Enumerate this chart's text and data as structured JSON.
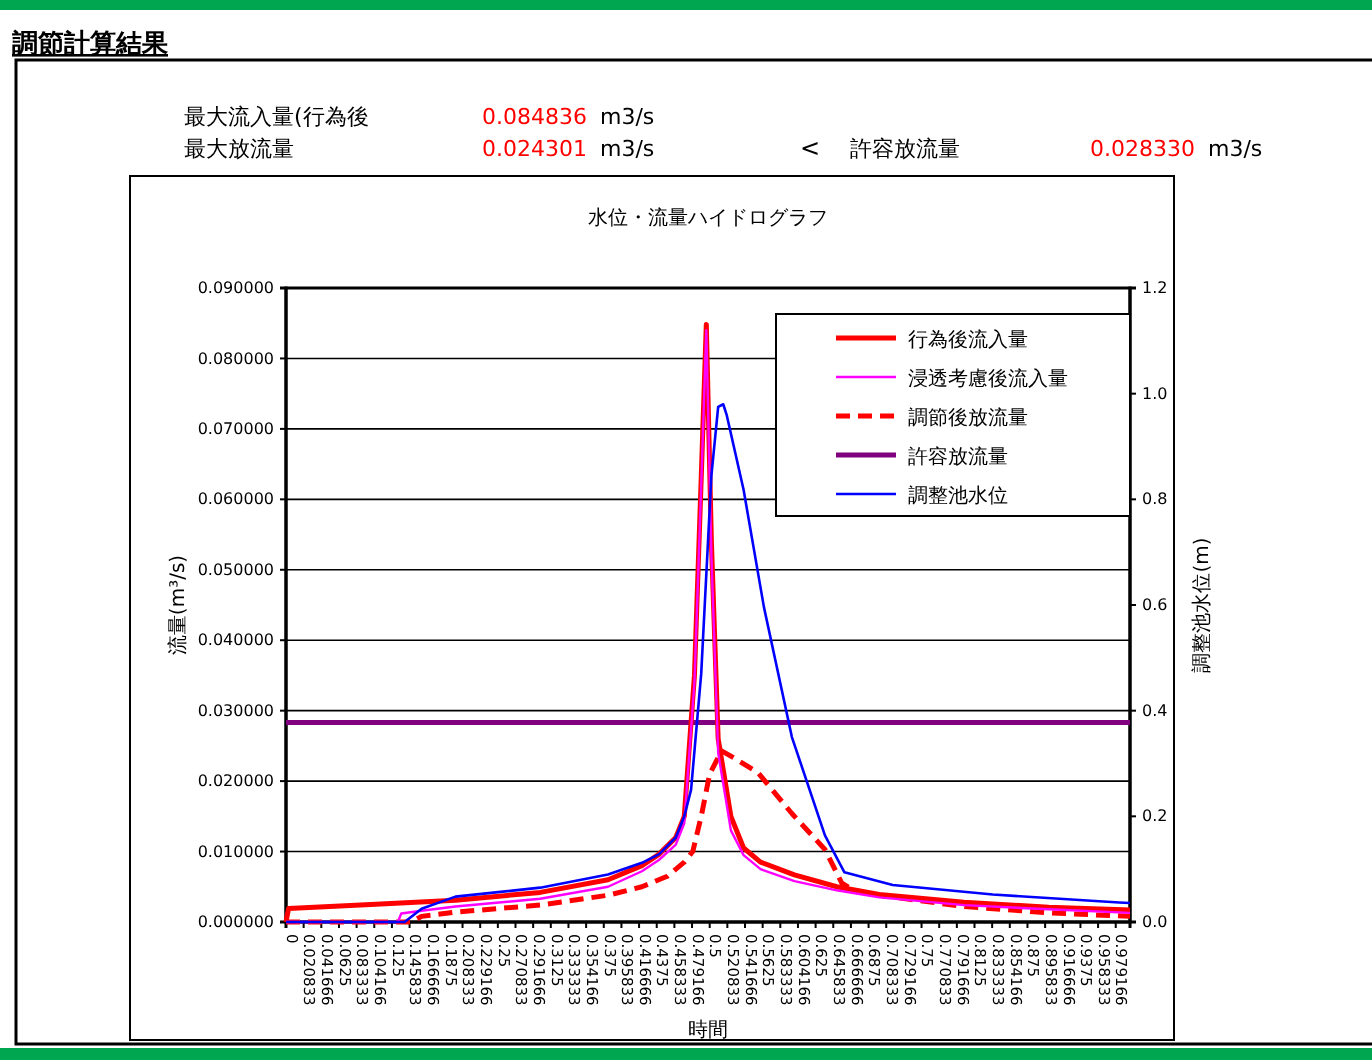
{
  "chart_data": {
    "type": "line",
    "title": "水位・流量ハイドログラフ",
    "annotations": [
      "調節計算結果",
      "最大流入量(行為後",
      "0.084836",
      "m3/s",
      "最大放流量",
      "0.024301",
      "m3/s",
      "<",
      "許容放流量",
      "0.028330",
      "m3/s"
    ],
    "xlabel": "時間",
    "ylabel": "流量(m³/s)",
    "y2label": "調整池水位(m)",
    "xlim": [
      0,
      0.996
    ],
    "xticks": [
      0,
      0.020833,
      0.041666,
      0.0625,
      0.083333,
      0.104166,
      0.125,
      0.145833,
      0.166666,
      0.1875,
      0.208333,
      0.229166,
      0.25,
      0.270833,
      0.291666,
      0.3125,
      0.333333,
      0.354166,
      0.375,
      0.395833,
      0.416666,
      0.4375,
      0.458333,
      0.479166,
      0.5,
      0.520833,
      0.541666,
      0.5625,
      0.583333,
      0.604166,
      0.625,
      0.645833,
      0.666666,
      0.6875,
      0.708333,
      0.729166,
      0.75,
      0.770833,
      0.791666,
      0.8125,
      0.833333,
      0.854166,
      0.875,
      0.895833,
      0.916666,
      0.9375,
      0.958333,
      0.979166
    ],
    "ylim": [
      0,
      0.09
    ],
    "yticks": [
      {
        "value": 0,
        "label": "0.000000"
      },
      {
        "value": 0.01,
        "label": "0.010000"
      },
      {
        "value": 0.02,
        "label": "0.020000"
      },
      {
        "value": 0.03,
        "label": "0.030000"
      },
      {
        "value": 0.04,
        "label": "0.040000"
      },
      {
        "value": 0.05,
        "label": "0.050000"
      },
      {
        "value": 0.06,
        "label": "0.060000"
      },
      {
        "value": 0.07,
        "label": "0.070000"
      },
      {
        "value": 0.08,
        "label": "0.080000"
      },
      {
        "value": 0.09,
        "label": "0.090000"
      }
    ],
    "y2lim": [
      0,
      1.2
    ],
    "y2ticks": [
      {
        "value": 0,
        "label": "0.0"
      },
      {
        "value": 0.2,
        "label": "0.2"
      },
      {
        "value": 0.4,
        "label": "0.4"
      },
      {
        "value": 0.6,
        "label": "0.6"
      },
      {
        "value": 0.8,
        "label": "0.8"
      },
      {
        "value": 1,
        "label": "1.0"
      },
      {
        "value": 1.2,
        "label": "1.2"
      }
    ],
    "grid": "y",
    "legend": "top right",
    "marker": "none",
    "series": [
      {
        "name": "行為後流入量",
        "color": "#ff0000",
        "line_style": "solid",
        "x": [
          0,
          0.003,
          0.1,
          0.2,
          0.3,
          0.38,
          0.42,
          0.44,
          0.46,
          0.47,
          0.482,
          0.49,
          0.496,
          0.502,
          0.51,
          0.525,
          0.54,
          0.56,
          0.6,
          0.65,
          0.7,
          0.8,
          0.9,
          0.996
        ],
        "values": [
          0,
          0.0019,
          0.0025,
          0.0031,
          0.0042,
          0.006,
          0.008,
          0.0096,
          0.012,
          0.015,
          0.035,
          0.063,
          0.084836,
          0.054,
          0.026,
          0.015,
          0.0105,
          0.0085,
          0.0067,
          0.005,
          0.0039,
          0.0028,
          0.0021,
          0.0017
        ]
      },
      {
        "name": "浸透考慮後流入量",
        "color": "#ff00ff",
        "line_style": "solid",
        "x": [
          0,
          0.132,
          0.136,
          0.16,
          0.2,
          0.3,
          0.38,
          0.42,
          0.44,
          0.46,
          0.47,
          0.482,
          0.49,
          0.496,
          0.502,
          0.51,
          0.525,
          0.54,
          0.56,
          0.6,
          0.65,
          0.7,
          0.8,
          0.9,
          0.996
        ],
        "values": [
          0,
          0,
          0.0012,
          0.0016,
          0.0022,
          0.0033,
          0.005,
          0.0072,
          0.0088,
          0.011,
          0.014,
          0.034,
          0.062,
          0.084,
          0.052,
          0.024,
          0.013,
          0.0095,
          0.0075,
          0.0058,
          0.0045,
          0.0035,
          0.0024,
          0.0018,
          0.0013
        ]
      },
      {
        "name": "調節後放流量",
        "color": "#ff0000",
        "line_style": "dashed",
        "x": [
          0,
          0.148,
          0.16,
          0.2,
          0.3,
          0.38,
          0.42,
          0.45,
          0.47,
          0.48,
          0.49,
          0.5,
          0.514,
          0.53,
          0.557,
          0.597,
          0.636,
          0.656,
          0.67,
          0.7,
          0.8,
          0.9,
          0.996
        ],
        "values": [
          0,
          0,
          0.0008,
          0.0014,
          0.0024,
          0.0038,
          0.005,
          0.0065,
          0.0085,
          0.01,
          0.015,
          0.021,
          0.024301,
          0.0232,
          0.0212,
          0.0154,
          0.0103,
          0.0055,
          0.0045,
          0.0038,
          0.0022,
          0.0013,
          0.0008
        ]
      },
      {
        "name": "許容放流量",
        "color": "#800080",
        "line_style": "solid",
        "x": [
          0,
          0.996
        ],
        "values": [
          0.02833,
          0.02833
        ]
      },
      {
        "name": "調整池水位",
        "color": "#0000ff",
        "line_style": "solid",
        "axis": "y2",
        "x": [
          0,
          0.14,
          0.16,
          0.2,
          0.3,
          0.38,
          0.42,
          0.44,
          0.46,
          0.47,
          0.478,
          0.49,
          0.502,
          0.51,
          0.516,
          0.52,
          0.54,
          0.564,
          0.597,
          0.636,
          0.659,
          0.716,
          0.834,
          0.983,
          0.996
        ],
        "values": [
          0,
          0,
          0.025,
          0.048,
          0.065,
          0.09,
          0.112,
          0.128,
          0.16,
          0.2,
          0.25,
          0.47,
          0.845,
          0.975,
          0.98,
          0.96,
          0.818,
          0.596,
          0.35,
          0.164,
          0.094,
          0.07,
          0.052,
          0.037,
          0.036
        ]
      }
    ]
  }
}
